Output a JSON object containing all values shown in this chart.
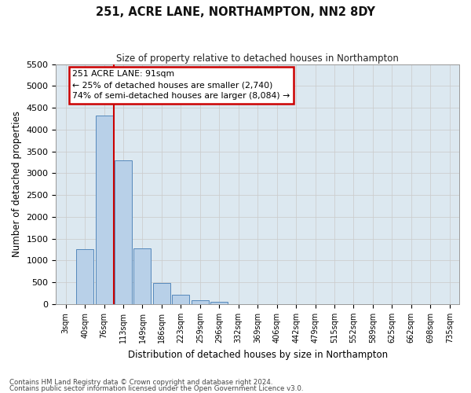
{
  "title": "251, ACRE LANE, NORTHAMPTON, NN2 8DY",
  "subtitle": "Size of property relative to detached houses in Northampton",
  "xlabel": "Distribution of detached houses by size in Northampton",
  "ylabel": "Number of detached properties",
  "footer1": "Contains HM Land Registry data © Crown copyright and database right 2024.",
  "footer2": "Contains public sector information licensed under the Open Government Licence v3.0.",
  "bar_labels": [
    "3sqm",
    "40sqm",
    "76sqm",
    "113sqm",
    "149sqm",
    "186sqm",
    "223sqm",
    "259sqm",
    "296sqm",
    "332sqm",
    "369sqm",
    "406sqm",
    "442sqm",
    "479sqm",
    "515sqm",
    "552sqm",
    "589sqm",
    "625sqm",
    "662sqm",
    "698sqm",
    "735sqm"
  ],
  "bar_values": [
    0,
    1260,
    4330,
    3290,
    1280,
    490,
    210,
    90,
    60,
    0,
    0,
    0,
    0,
    0,
    0,
    0,
    0,
    0,
    0,
    0,
    0
  ],
  "bar_color": "#b8d0e8",
  "bar_edge_color": "#5588bb",
  "ylim": [
    0,
    5500
  ],
  "yticks": [
    0,
    500,
    1000,
    1500,
    2000,
    2500,
    3000,
    3500,
    4000,
    4500,
    5000,
    5500
  ],
  "red_line_x": 2.5,
  "annotation_text_line1": "251 ACRE LANE: 91sqm",
  "annotation_text_line2": "← 25% of detached houses are smaller (2,740)",
  "annotation_text_line3": "74% of semi-detached houses are larger (8,084) →",
  "annotation_box_color": "#ffffff",
  "annotation_box_edge_color": "#cc0000",
  "red_line_color": "#cc0000",
  "grid_color": "#cccccc",
  "plot_bg_color": "#dce8f0",
  "fig_bg_color": "#ffffff"
}
